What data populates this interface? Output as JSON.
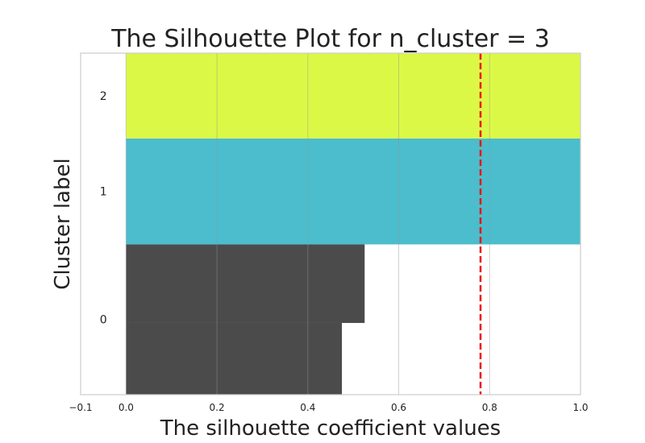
{
  "chart_data": {
    "type": "silhouette",
    "title": "The Silhouette Plot for n_cluster = 3",
    "xlabel": "The silhouette coefficient values",
    "ylabel": "Cluster label",
    "xlim": [
      -0.1,
      1.0
    ],
    "ylim": [
      0,
      100
    ],
    "xticks": [
      -0.1,
      0.0,
      0.2,
      0.4,
      0.6,
      0.8,
      1.0
    ],
    "xtick_labels": [
      "−0.1",
      "0.0",
      "0.2",
      "0.4",
      "0.6",
      "0.8",
      "1.0"
    ],
    "grid": true,
    "average_silhouette": 0.78,
    "average_line_color": "#ee1111",
    "clusters": [
      {
        "label": "0",
        "color": "#4b4b4b",
        "y_range": [
          0,
          44
        ],
        "segments": [
          {
            "y_range": [
              0,
              21
            ],
            "value": 0.475
          },
          {
            "y_range": [
              21,
              44
            ],
            "value": 0.525
          }
        ]
      },
      {
        "label": "1",
        "color": "#4bbdcd",
        "y_range": [
          44,
          75
        ],
        "segments": [
          {
            "y_range": [
              44,
              75
            ],
            "value": 1.0
          }
        ]
      },
      {
        "label": "2",
        "color": "#dcf846",
        "y_range": [
          75,
          100
        ],
        "segments": [
          {
            "y_range": [
              75,
              100
            ],
            "value": 1.0
          }
        ]
      }
    ]
  }
}
